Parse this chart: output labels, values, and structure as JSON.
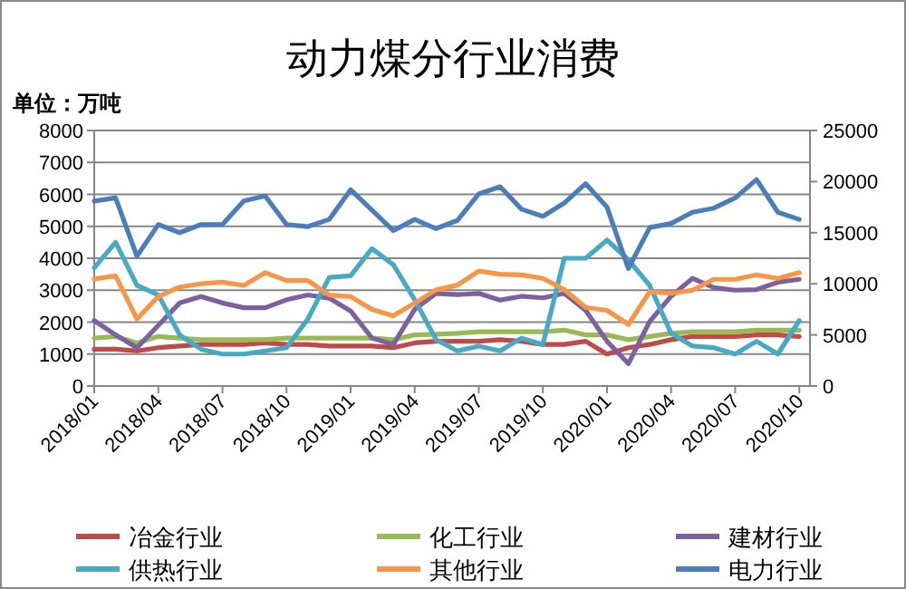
{
  "chart_data": {
    "type": "line",
    "title": "动力煤分行业消费",
    "ylabel": "单位：万吨",
    "categories": [
      "2018/01",
      null,
      null,
      "2018/04",
      null,
      null,
      "2018/07",
      null,
      null,
      "2018/10",
      null,
      null,
      "2019/01",
      null,
      null,
      "2019/04",
      null,
      null,
      "2019/07",
      null,
      null,
      "2019/10",
      null,
      null,
      "2020/01",
      null,
      null,
      "2020/04",
      null,
      null,
      "2020/07",
      null,
      null,
      "2020/10"
    ],
    "series": [
      {
        "name": "冶金行业",
        "color": "#be4b48",
        "values": [
          1150,
          1150,
          1100,
          1200,
          1250,
          1300,
          1300,
          1300,
          1350,
          1300,
          1300,
          1250,
          1250,
          1250,
          1200,
          1350,
          1400,
          1400,
          1400,
          1450,
          1400,
          1300,
          1300,
          1400,
          1000,
          1200,
          1300,
          1450,
          1550,
          1550,
          1550,
          1600,
          1600,
          1550
        ]
      },
      {
        "name": "化工行业",
        "color": "#98b954",
        "values": [
          1500,
          1550,
          1350,
          1550,
          1500,
          1450,
          1450,
          1450,
          1450,
          1500,
          1500,
          1500,
          1500,
          1500,
          1450,
          1600,
          1620,
          1650,
          1700,
          1700,
          1700,
          1700,
          1750,
          1600,
          1600,
          1450,
          1550,
          1650,
          1700,
          1700,
          1700,
          1750,
          1750,
          1750
        ]
      },
      {
        "name": "建材行业",
        "color": "#7d60a0",
        "values": [
          2050,
          1600,
          1200,
          1900,
          2600,
          2800,
          2600,
          2450,
          2450,
          2700,
          2850,
          2750,
          2350,
          1500,
          1300,
          2400,
          2900,
          2860,
          2900,
          2690,
          2810,
          2760,
          2900,
          2370,
          1400,
          700,
          2020,
          2810,
          3370,
          3080,
          3000,
          3020,
          3250,
          3340
        ]
      },
      {
        "name": "供热行业",
        "color": "#46aac5",
        "values": [
          3700,
          4500,
          3150,
          2850,
          1600,
          1150,
          1000,
          1000,
          1100,
          1200,
          2100,
          3400,
          3450,
          4300,
          3800,
          2700,
          1450,
          1100,
          1250,
          1100,
          1500,
          1300,
          4000,
          4000,
          4570,
          3950,
          3150,
          1650,
          1250,
          1200,
          1000,
          1400,
          1000,
          2050
        ]
      },
      {
        "name": "其他行业",
        "color": "#f79646",
        "values": [
          3350,
          3450,
          2100,
          2800,
          3100,
          3200,
          3250,
          3150,
          3550,
          3300,
          3300,
          2850,
          2800,
          2400,
          2200,
          2600,
          3010,
          3160,
          3600,
          3500,
          3480,
          3370,
          3020,
          2460,
          2370,
          1930,
          2950,
          2900,
          3000,
          3340,
          3340,
          3480,
          3370,
          3550
        ]
      },
      {
        "name": "电力行业",
        "color": "#4a7ebb",
        "axis": "y2",
        "values": [
          18100,
          18400,
          12700,
          15800,
          15000,
          15800,
          15800,
          18100,
          18600,
          15800,
          15600,
          16300,
          19200,
          17200,
          15200,
          16300,
          15400,
          16200,
          18800,
          19500,
          17300,
          16600,
          17900,
          19800,
          17500,
          11500,
          15500,
          15900,
          17000,
          17400,
          18400,
          20200,
          17000,
          16300
        ]
      }
    ],
    "ylim": [
      0,
      8000
    ],
    "yticks": [
      0,
      1000,
      2000,
      3000,
      4000,
      5000,
      6000,
      7000,
      8000
    ],
    "y2lim": [
      0,
      25000
    ],
    "y2ticks": [
      0,
      5000,
      10000,
      15000,
      20000,
      25000
    ],
    "grid": "y",
    "legend": "bottom"
  }
}
